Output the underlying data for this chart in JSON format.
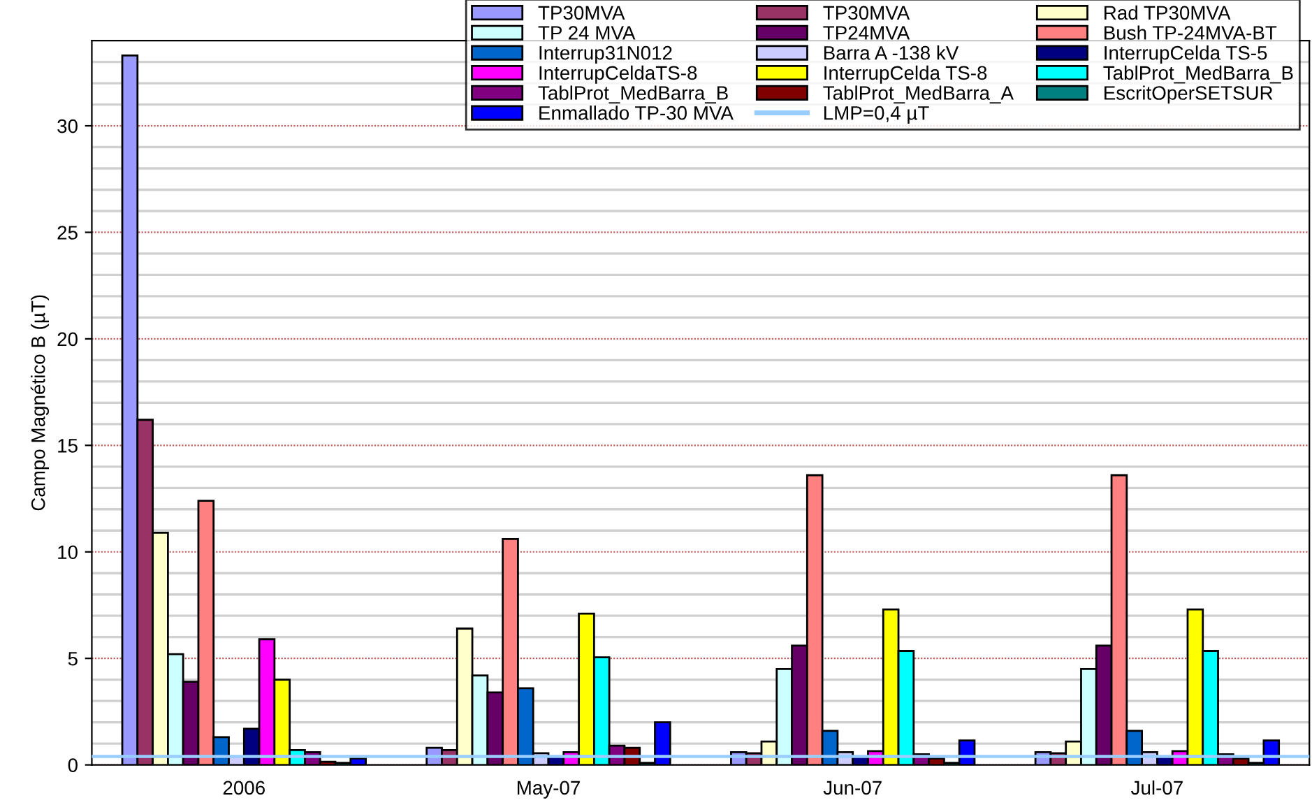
{
  "chart_data": {
    "type": "bar",
    "ylabel": "Campo Magnético B (µT)",
    "categories": [
      "2006",
      "May-07",
      "Jun-07",
      "Jul-07"
    ],
    "series": [
      {
        "name": "TP30MVA",
        "color": "#9999ff",
        "values": [
          33.3,
          0.8,
          0.6,
          0.6
        ]
      },
      {
        "name": "TP30MVA",
        "color": "#993366",
        "values": [
          16.2,
          0.7,
          0.55,
          0.55
        ]
      },
      {
        "name": "Rad TP30MVA",
        "color": "#ffffcc",
        "values": [
          10.9,
          6.4,
          1.1,
          1.1
        ]
      },
      {
        "name": "TP 24 MVA",
        "color": "#ccffff",
        "values": [
          5.2,
          4.2,
          4.5,
          4.5
        ]
      },
      {
        "name": "TP24MVA",
        "color": "#660066",
        "values": [
          3.9,
          3.4,
          5.6,
          5.6
        ]
      },
      {
        "name": "Bush TP-24MVA-BT",
        "color": "#ff8080",
        "values": [
          12.4,
          10.6,
          13.6,
          13.6
        ]
      },
      {
        "name": "Interrup31N012",
        "color": "#0066cc",
        "values": [
          1.3,
          3.6,
          1.6,
          1.6
        ]
      },
      {
        "name": "Barra A -138 kV",
        "color": "#ccccff",
        "values": [
          0.4,
          0.55,
          0.6,
          0.6
        ]
      },
      {
        "name": "InterrupCelda TS-5",
        "color": "#000080",
        "values": [
          1.7,
          0.4,
          0.4,
          0.4
        ]
      },
      {
        "name": "InterrupCeldaTS-8",
        "color": "#ff00ff",
        "values": [
          5.9,
          0.6,
          0.65,
          0.65
        ]
      },
      {
        "name": "InterrupCelda TS-8",
        "color": "#ffff00",
        "values": [
          4.0,
          7.1,
          7.3,
          7.3
        ]
      },
      {
        "name": "TablProt_MedBarra_B",
        "color": "#00ffff",
        "values": [
          0.7,
          5.05,
          5.35,
          5.35
        ]
      },
      {
        "name": "TablProt_MedBarra_B",
        "color": "#800080",
        "values": [
          0.6,
          0.9,
          0.5,
          0.5
        ]
      },
      {
        "name": "TablProt_MedBarra_A",
        "color": "#800000",
        "values": [
          0.15,
          0.8,
          0.3,
          0.3
        ]
      },
      {
        "name": "EscritOperSETSUR",
        "color": "#008080",
        "values": [
          0.1,
          0.1,
          0.1,
          0.1
        ]
      },
      {
        "name": "Enmallado TP-30 MVA",
        "color": "#0000ff",
        "values": [
          0.3,
          2.0,
          1.15,
          1.15
        ]
      }
    ],
    "ref_lines": [
      {
        "axis": "y",
        "value": 0.4,
        "label": "LMP=0,4 µT",
        "color": "#99ccff",
        "line_style": "solid"
      }
    ],
    "ylim": [
      0,
      34
    ],
    "yticks": [
      0,
      {
        "value": 1,
        "label": null
      },
      {
        "value": 2,
        "label": null
      },
      {
        "value": 3,
        "label": null
      },
      {
        "value": 4,
        "label": null
      },
      5,
      {
        "value": 6,
        "label": null
      },
      {
        "value": 7,
        "label": null
      },
      {
        "value": 8,
        "label": null
      },
      {
        "value": 9,
        "label": null
      },
      10,
      {
        "value": 11,
        "label": null
      },
      {
        "value": 12,
        "label": null
      },
      {
        "value": 13,
        "label": null
      },
      {
        "value": 14,
        "label": null
      },
      15,
      {
        "value": 16,
        "label": null
      },
      {
        "value": 17,
        "label": null
      },
      {
        "value": 18,
        "label": null
      },
      {
        "value": 19,
        "label": null
      },
      20,
      {
        "value": 21,
        "label": null
      },
      {
        "value": 22,
        "label": null
      },
      {
        "value": 23,
        "label": null
      },
      {
        "value": 24,
        "label": null
      },
      25,
      {
        "value": 26,
        "label": null
      },
      {
        "value": 27,
        "label": null
      },
      {
        "value": 28,
        "label": null
      },
      {
        "value": 29,
        "label": null
      },
      30,
      {
        "value": 31,
        "label": null
      },
      {
        "value": 32,
        "label": null
      },
      {
        "value": 33,
        "label": null
      }
    ],
    "grid": "y",
    "legend": "top right"
  }
}
